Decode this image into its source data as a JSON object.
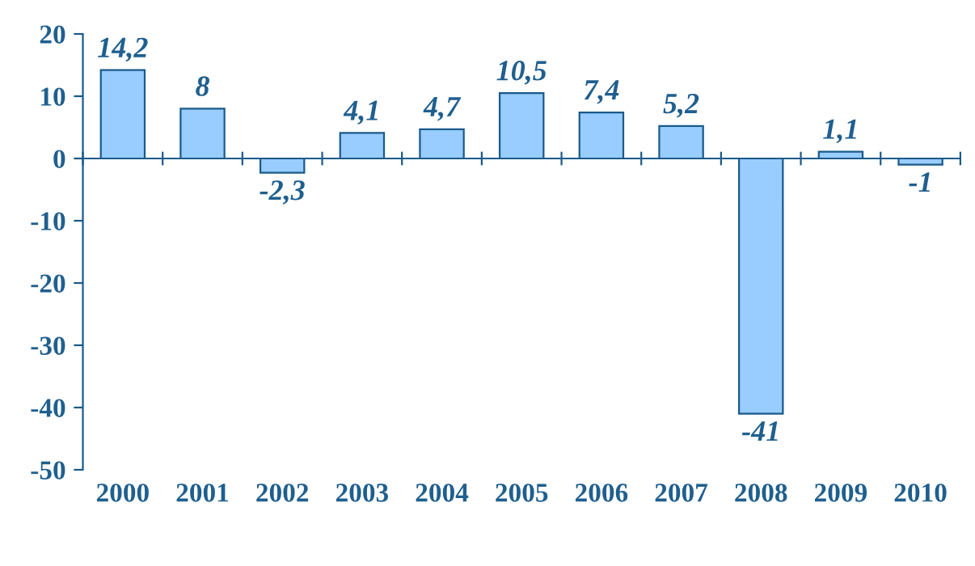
{
  "chart_data": {
    "type": "bar",
    "categories": [
      "2000",
      "2001",
      "2002",
      "2003",
      "2004",
      "2005",
      "2006",
      "2007",
      "2008",
      "2009",
      "2010"
    ],
    "values": [
      14.2,
      8,
      -2.3,
      4.1,
      4.7,
      10.5,
      7.4,
      5.2,
      -41,
      1.1,
      -1
    ],
    "value_labels": [
      "14,2",
      "8",
      "-2,3",
      "4,1",
      "4,7",
      "10,5",
      "7,4",
      "5,2",
      "-41",
      "1,1",
      "-1"
    ],
    "color": "#99ccff",
    "ylim": [
      -50,
      20
    ],
    "yticks": [
      -50,
      -40,
      -30,
      -20,
      -10,
      0,
      10,
      20
    ],
    "ref_lines": [
      {
        "axis": "y",
        "value": 0,
        "color": "#1a5a8a"
      }
    ],
    "grid": false,
    "legend": false
  }
}
